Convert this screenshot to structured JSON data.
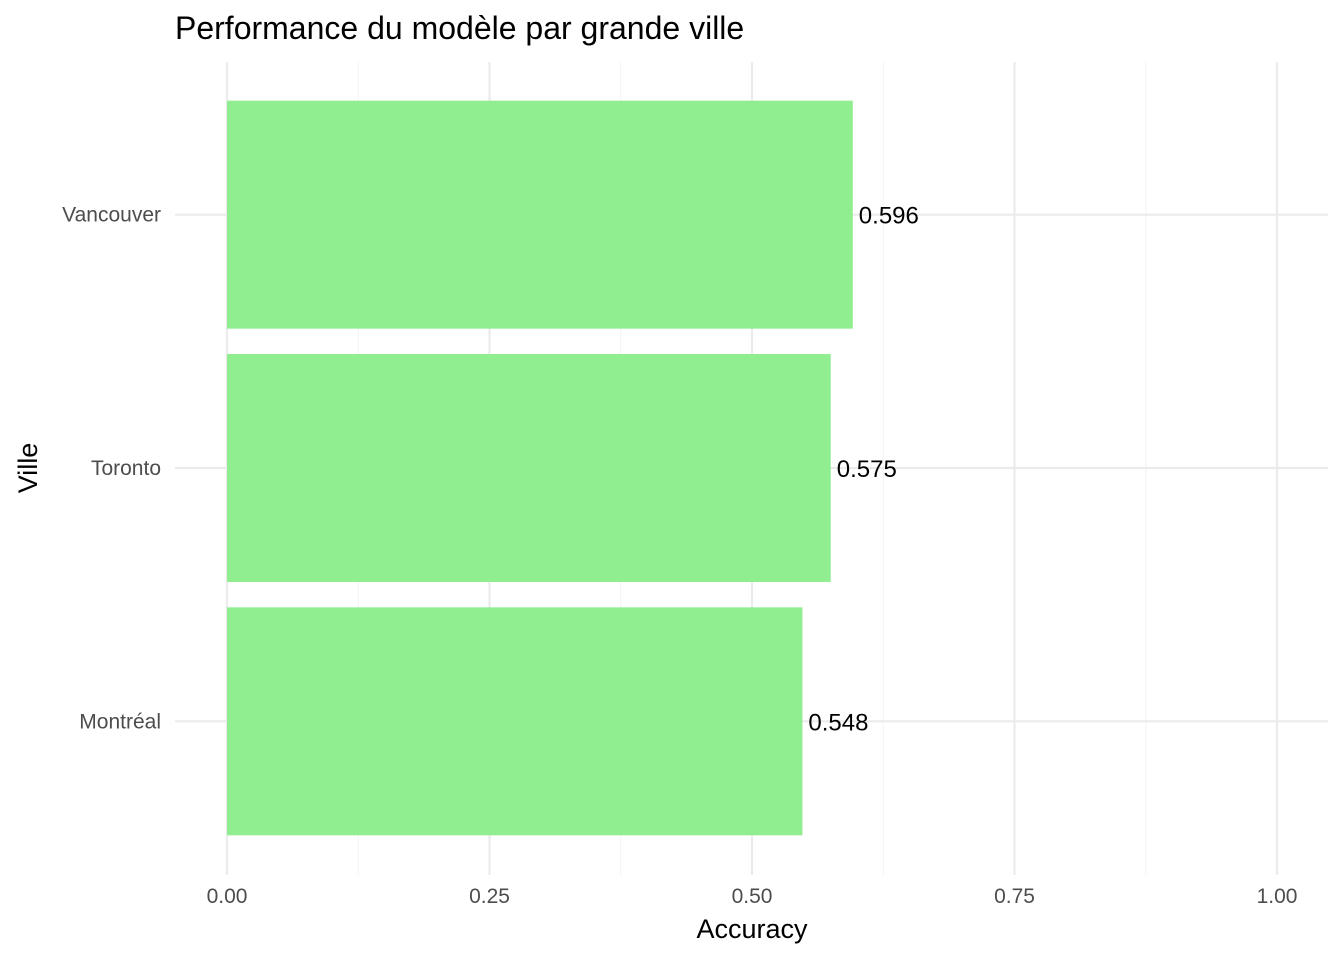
{
  "chart_data": {
    "type": "bar",
    "orientation": "horizontal",
    "title": "Performance du modèle par grande ville",
    "xlabel": "Accuracy",
    "ylabel": "Ville",
    "categories": [
      "Montréal",
      "Toronto",
      "Vancouver"
    ],
    "values": [
      0.548,
      0.575,
      0.596
    ],
    "data_labels": [
      "0.548",
      "0.575",
      "0.596"
    ],
    "xlim": [
      0,
      1
    ],
    "x_ticks": [
      0,
      0.25,
      0.5,
      0.75,
      1
    ],
    "x_tick_labels": [
      "0.00",
      "0.25",
      "0.50",
      "0.75",
      "1.00"
    ],
    "grid": true,
    "legend": "none",
    "colors": {
      "bar": "#90ee90",
      "grid_major": "#ebebeb",
      "grid_minor": "#f3f3f3",
      "tick_text": "#4d4d4d"
    }
  }
}
